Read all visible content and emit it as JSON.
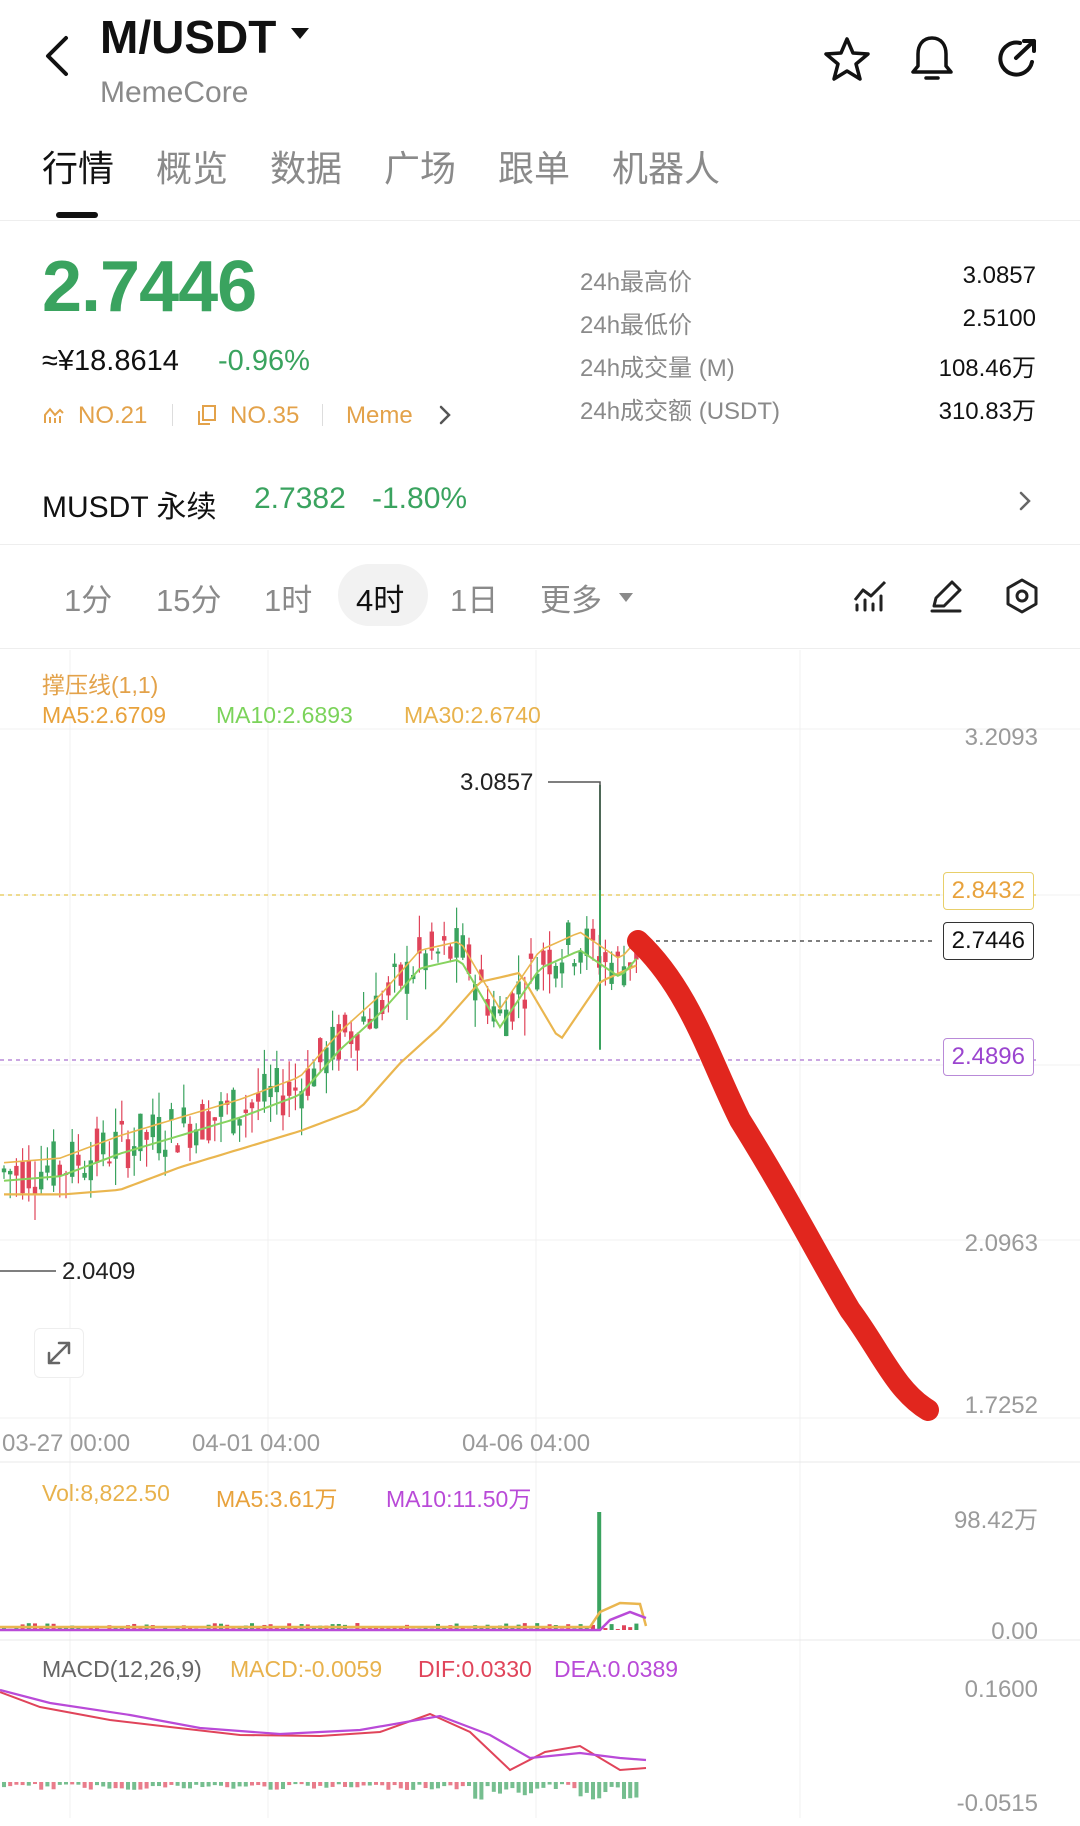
{
  "header": {
    "title": "M/USDT",
    "subtitle": "MemeCore",
    "icons": [
      "back-icon",
      "caret-down-icon",
      "star-icon",
      "bell-icon",
      "share-icon"
    ]
  },
  "tabs": [
    "行情",
    "概览",
    "数据",
    "广场",
    "跟单",
    "机器人"
  ],
  "price": {
    "last": "2.7446",
    "cny": "≈¥18.8614",
    "change": "-0.96%",
    "rank1": "NO.21",
    "rank2": "NO.35",
    "tag": "Meme"
  },
  "stats": [
    {
      "label": "24h最高价",
      "value": "3.0857"
    },
    {
      "label": "24h最低价",
      "value": "2.5100"
    },
    {
      "label": "24h成交量 (M)",
      "value": "108.46万"
    },
    {
      "label": "24h成交额 (USDT)",
      "value": "310.83万"
    }
  ],
  "perp": {
    "name": "MUSDT 永续",
    "price": "2.7382",
    "change": "-1.80%"
  },
  "timeframes": [
    "1分",
    "15分",
    "1时",
    "4时",
    "1日",
    "更多"
  ],
  "active_timeframe": "4时",
  "chart_labels": {
    "sr": "撑压线(1,1)",
    "ma5": "MA5:2.6709",
    "ma10": "MA10:2.6893",
    "ma30": "MA30:2.6740",
    "y_axis": [
      "3.2093",
      "2.0963",
      "1.7252"
    ],
    "resistance": "2.8432",
    "current": "2.7446",
    "support": "2.4896",
    "high_marker": "3.0857",
    "low_marker": "2.0409",
    "dates": [
      "03-27 00:00",
      "04-01 04:00",
      "04-06 04:00"
    ]
  },
  "volume": {
    "vol": "Vol:8,822.50",
    "ma5": "MA5:3.61万",
    "ma10": "MA10:11.50万",
    "y_top": "98.42万",
    "y_bottom": "0.00"
  },
  "macd": {
    "label": "MACD(12,26,9)",
    "macd": "MACD:-0.0059",
    "dif": "DIF:0.0330",
    "dea": "DEA:0.0389",
    "y_top": "0.1600",
    "y_bottom": "-0.0515"
  },
  "colors": {
    "up": "#3aa35f",
    "down": "#e0445a",
    "ma5": "#e8b24c",
    "ma10": "#7bd35a",
    "ma30": "#e8b24c",
    "dea": "#b94ad8",
    "annotation": "#e1261e"
  },
  "chart_data": {
    "type": "candlestick",
    "x_ticks": [
      "03-27 00:00",
      "04-01 04:00",
      "04-06 04:00"
    ],
    "ylim": [
      1.7252,
      3.2093
    ],
    "high": 3.0857,
    "low": 2.0409,
    "last": 2.7446,
    "resistance": 2.8432,
    "support": 2.4896,
    "series": [
      {
        "name": "MA5",
        "last": 2.6709
      },
      {
        "name": "MA10",
        "last": 2.6893
      },
      {
        "name": "MA30",
        "last": 2.674
      }
    ]
  }
}
